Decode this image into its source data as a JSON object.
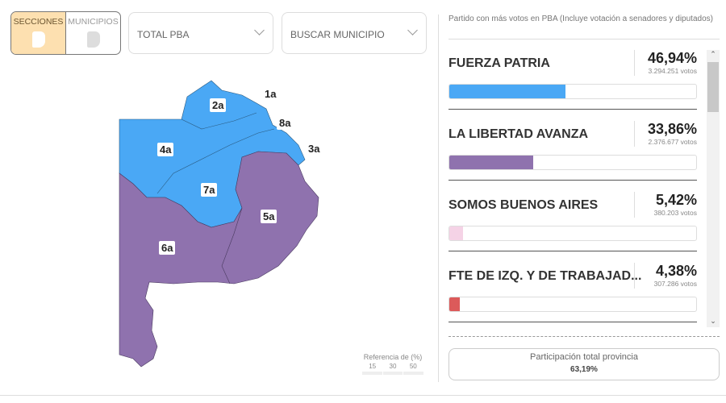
{
  "toggle": {
    "secciones": "SECCIONES",
    "municipios": "MUNICIPIOS"
  },
  "selects": {
    "total": "TOTAL PBA",
    "buscar": "BUSCAR MUNICIPIO"
  },
  "map": {
    "colors": {
      "fuerza_patria": "#4aa8f5",
      "libertad_avanza": "#8f72ae"
    },
    "labels": {
      "s1": "1a",
      "s2": "2a",
      "s3": "3a",
      "s4": "4a",
      "s5": "5a",
      "s6": "6a",
      "s7": "7a",
      "s8": "8a"
    }
  },
  "legend": {
    "title": "Referencia de (%)",
    "ticks": [
      "15",
      "30",
      "50"
    ]
  },
  "results": {
    "subtitle": "Partido con más votos en PBA (Incluye votación a senadores y diputados)",
    "parties": [
      {
        "name": "FUERZA PATRIA",
        "pct": "46,94%",
        "votes": "3.294.251 votos",
        "value": 46.94,
        "color": "#4aa8f5"
      },
      {
        "name": "LA LIBERTAD AVANZA",
        "pct": "33,86%",
        "votes": "2.376.677 votos",
        "value": 33.86,
        "color": "#8f72ae"
      },
      {
        "name": "SOMOS BUENOS AIRES",
        "pct": "5,42%",
        "votes": "380.203 votos",
        "value": 5.42,
        "color": "#f5d3e6"
      },
      {
        "name": "FTE DE IZQ. Y DE TRABAJAD...",
        "pct": "4,38%",
        "votes": "307.286 votos",
        "value": 4.38,
        "color": "#dc5a5a"
      }
    ]
  },
  "participation": {
    "label": "Participación total provincia",
    "value": "63,19%"
  }
}
